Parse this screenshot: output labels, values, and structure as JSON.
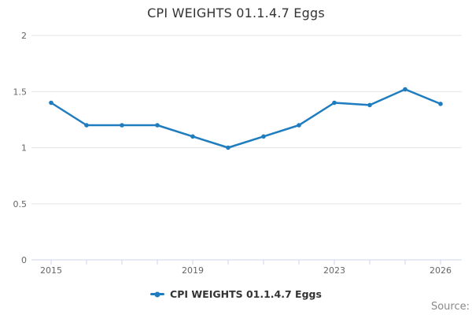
{
  "header": {
    "title": "CPI WEIGHTS 01.1.4.7 Eggs"
  },
  "legend": {
    "items": [
      {
        "label": "CPI WEIGHTS 01.1.4.7 Eggs",
        "color": "#1f7dbf",
        "marker": "line-dot-icon"
      }
    ]
  },
  "footer": {
    "source_label": "Source:"
  },
  "chart_data": {
    "type": "line",
    "title": "CPI WEIGHTS 01.1.4.7 Eggs",
    "x": [
      2015,
      2016,
      2017,
      2018,
      2019,
      2020,
      2021,
      2022,
      2023,
      2024,
      2025,
      2026
    ],
    "series": [
      {
        "name": "CPI WEIGHTS 01.1.4.7 Eggs",
        "color": "#1f7dbf",
        "values": [
          1.4,
          1.2,
          1.2,
          1.2,
          1.1,
          1.0,
          1.1,
          1.2,
          1.4,
          1.38,
          1.52,
          1.39
        ]
      }
    ],
    "xlabel": "",
    "ylabel": "",
    "ylim": [
      0,
      2
    ],
    "yticks": [
      0,
      0.5,
      1,
      1.5,
      2
    ],
    "ytick_labels": [
      "0",
      "0.5",
      "1",
      "1.5",
      "2"
    ],
    "xticks_all_years": [
      2015,
      2016,
      2017,
      2018,
      2019,
      2020,
      2021,
      2022,
      2023,
      2024,
      2025,
      2026
    ],
    "xticks_labeled": [
      "2015",
      "2019",
      "2023",
      "2026"
    ],
    "grid": true,
    "legend_position": "bottom-center",
    "colors": {
      "line": "#1f7dbf",
      "grid": "#e6e6e6",
      "axis_line": "#ccd6eb",
      "tick_label": "#666666",
      "title": "#333333",
      "source": "#888888"
    }
  }
}
